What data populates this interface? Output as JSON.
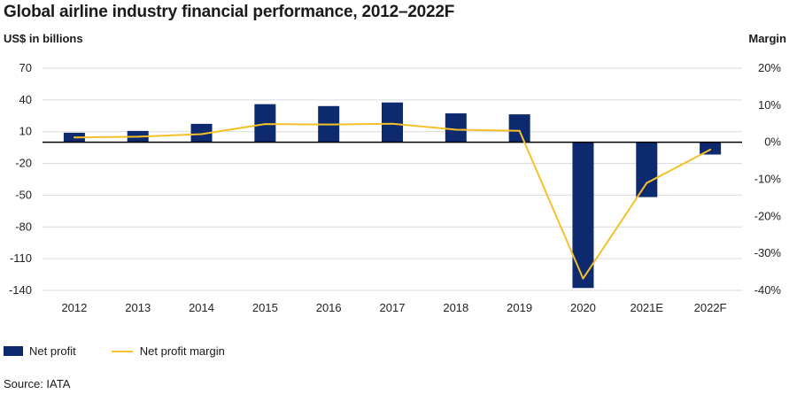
{
  "colors": {
    "bar": "#0d2a6e",
    "line": "#f5c02a",
    "grid": "#d9d9d9",
    "axis": "#000000"
  },
  "legend": {
    "net_profit": "Net profit",
    "net_profit_margin": "Net profit margin"
  },
  "source": "Source: IATA",
  "chart_data": {
    "type": "bar",
    "title": "Global airline industry financial performance, 2012–2022F",
    "ylabel": "US$ in billions",
    "ylabel_right": "Margin",
    "categories": [
      "2012",
      "2013",
      "2014",
      "2015",
      "2016",
      "2017",
      "2018",
      "2019",
      "2020",
      "2021E",
      "2022F"
    ],
    "series": [
      {
        "name": "Net profit",
        "kind": "bar",
        "axis": "left",
        "values": [
          9,
          10.7,
          17.4,
          36,
          34.2,
          37.6,
          27.3,
          26.4,
          -137.7,
          -51.8,
          -11.6
        ]
      },
      {
        "name": "Net profit margin",
        "kind": "line",
        "axis": "right",
        "values": [
          1.3,
          1.5,
          2.2,
          4.9,
          4.8,
          5.0,
          3.4,
          3.1,
          -36.8,
          -11.0,
          -2.0
        ]
      }
    ],
    "ylim": [
      -140,
      70
    ],
    "yticks": [
      70,
      40,
      10,
      -20,
      -50,
      -80,
      -110,
      -140
    ],
    "ylim_right": [
      -40,
      20
    ],
    "yticks_right": [
      "20%",
      "10%",
      "0%",
      "-10%",
      "-20%",
      "-30%",
      "-40%"
    ],
    "yticks_right_values": [
      20,
      10,
      0,
      -10,
      -20,
      -30,
      -40
    ],
    "grid": true,
    "legend_position": "bottom-left"
  }
}
